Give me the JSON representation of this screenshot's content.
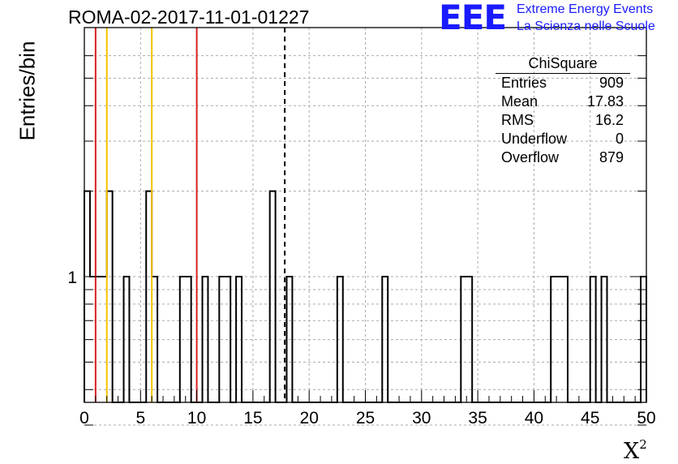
{
  "title": "ROMA-02-2017-11-01-01227",
  "logo": {
    "mark": "EEE",
    "line1": "Extreme Energy Events",
    "line2": "La Scienza nelle Scuole",
    "color": "#1a1aff"
  },
  "stats": {
    "title": "ChiSquare",
    "rows": [
      {
        "key": "Entries",
        "value": "909"
      },
      {
        "key": "Mean",
        "value": "17.83"
      },
      {
        "key": "RMS",
        "value": "16.2"
      },
      {
        "key": "Underflow",
        "value": "0"
      },
      {
        "key": "Overflow",
        "value": "879"
      }
    ]
  },
  "chart_data": {
    "type": "bar",
    "histogram": true,
    "xlabel": "X",
    "xlabel_sup": "2",
    "ylabel": "Entries/bin",
    "xlim": [
      0,
      50
    ],
    "y_scale": "log",
    "ylim": [
      0.3,
      7
    ],
    "grid": true,
    "x_ticks": [
      0,
      5,
      10,
      15,
      20,
      25,
      30,
      35,
      40,
      45,
      50
    ],
    "x_tick_labels": [
      "0",
      "5",
      "10",
      "15",
      "20",
      "25",
      "30",
      "35",
      "40",
      "45",
      "50"
    ],
    "y_ticks": [
      1
    ],
    "y_tick_labels": [
      "1"
    ],
    "bin_width": 0.5,
    "bins": [
      {
        "x": 0.0,
        "count": 2
      },
      {
        "x": 0.5,
        "count": 1
      },
      {
        "x": 1.0,
        "count": 1
      },
      {
        "x": 1.5,
        "count": 1
      },
      {
        "x": 2.0,
        "count": 2
      },
      {
        "x": 3.5,
        "count": 1
      },
      {
        "x": 5.5,
        "count": 2
      },
      {
        "x": 6.0,
        "count": 1
      },
      {
        "x": 8.5,
        "count": 1
      },
      {
        "x": 9.0,
        "count": 1
      },
      {
        "x": 10.5,
        "count": 1
      },
      {
        "x": 12.0,
        "count": 1
      },
      {
        "x": 12.5,
        "count": 1
      },
      {
        "x": 13.5,
        "count": 1
      },
      {
        "x": 16.5,
        "count": 2
      },
      {
        "x": 18.0,
        "count": 1
      },
      {
        "x": 22.5,
        "count": 1
      },
      {
        "x": 26.5,
        "count": 1
      },
      {
        "x": 33.5,
        "count": 1
      },
      {
        "x": 34.0,
        "count": 1
      },
      {
        "x": 41.5,
        "count": 1
      },
      {
        "x": 42.0,
        "count": 1
      },
      {
        "x": 42.5,
        "count": 1
      },
      {
        "x": 45.0,
        "count": 1
      },
      {
        "x": 46.0,
        "count": 1
      },
      {
        "x": 49.5,
        "count": 1
      }
    ],
    "vertical_lines": [
      {
        "x": 1,
        "color": "#d62020",
        "style": "solid"
      },
      {
        "x": 2,
        "color": "#f2c200",
        "style": "solid"
      },
      {
        "x": 6,
        "color": "#f2c200",
        "style": "solid"
      },
      {
        "x": 10,
        "color": "#d62020",
        "style": "solid"
      },
      {
        "x": 17.83,
        "color": "#000000",
        "style": "dashed"
      }
    ]
  }
}
